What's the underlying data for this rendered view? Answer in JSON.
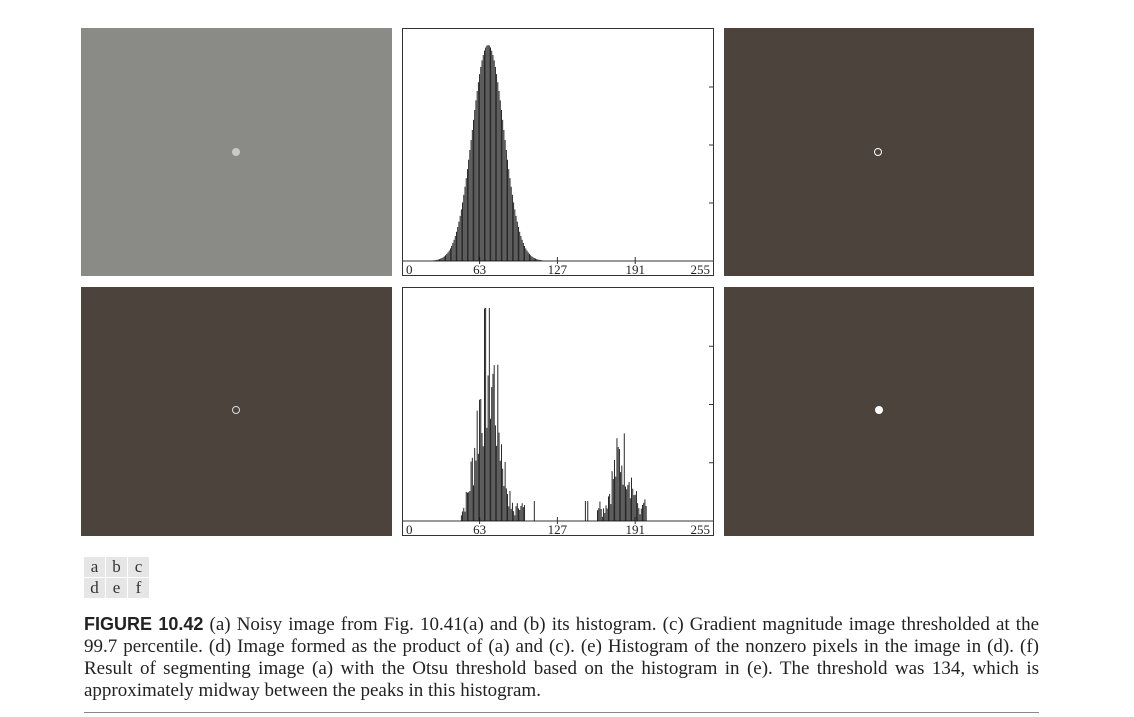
{
  "panels": {
    "labels": [
      "a",
      "b",
      "c",
      "d",
      "e",
      "f"
    ]
  },
  "chart_data": [
    {
      "type": "bar",
      "panel": "b",
      "x_ticks": [
        "0",
        "63",
        "127",
        "191",
        "255"
      ],
      "xlim": [
        0,
        255
      ],
      "shape": "gaussian",
      "peak_x": 70,
      "grid": false
    },
    {
      "type": "bar",
      "panel": "e",
      "x_ticks": [
        "0",
        "63",
        "127",
        "191",
        "255"
      ],
      "xlim": [
        0,
        255
      ],
      "peaks_x": [
        70,
        180
      ],
      "grid": false
    }
  ],
  "caption": {
    "figure_label": "FIGURE 10.42",
    "text": "(a) Noisy image from Fig. 10.41(a) and (b) its histogram. (c) Gradient magnitude image thresholded at the 99.7 percentile. (d) Image formed as the product of (a) and (c). (e) Histogram of the nonzero pixels in the image in (d). (f) Result of segmenting image (a) with the Otsu threshold based on the histogram in (e). The threshold was 134, which is approximately midway between the peaks in this histogram."
  }
}
